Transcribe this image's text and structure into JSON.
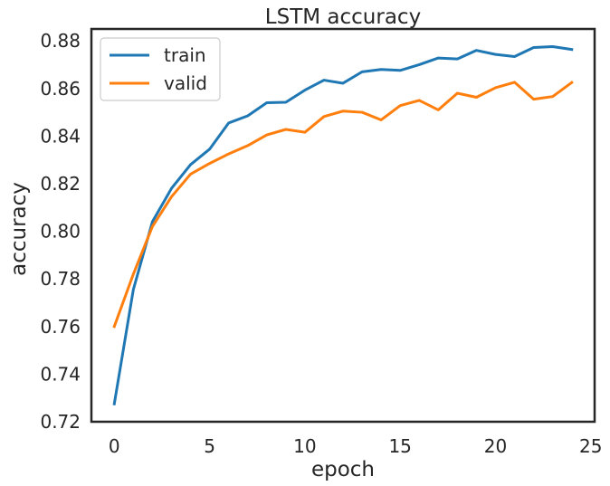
{
  "chart_data": {
    "type": "line",
    "title": "LSTM accuracy",
    "xlabel": "epoch",
    "ylabel": "accuracy",
    "xlim": [
      -1.2,
      25.2
    ],
    "ylim": [
      0.72,
      0.885
    ],
    "xticks": [
      0,
      5,
      10,
      15,
      20,
      25
    ],
    "yticks": [
      0.72,
      0.74,
      0.76,
      0.78,
      0.8,
      0.82,
      0.84,
      0.86,
      0.88
    ],
    "ytick_labels": [
      "0.72",
      "0.74",
      "0.76",
      "0.78",
      "0.80",
      "0.82",
      "0.84",
      "0.86",
      "0.88"
    ],
    "grid": false,
    "legend": "top-left",
    "x": [
      0,
      1,
      2,
      3,
      4,
      5,
      6,
      7,
      8,
      9,
      10,
      11,
      12,
      13,
      14,
      15,
      16,
      17,
      18,
      19,
      20,
      21,
      22,
      23,
      24
    ],
    "series": [
      {
        "name": "train",
        "color": "#1f77b4",
        "values": [
          0.7275,
          0.7755,
          0.804,
          0.818,
          0.828,
          0.8345,
          0.8455,
          0.8485,
          0.854,
          0.8542,
          0.8593,
          0.8635,
          0.8622,
          0.867,
          0.868,
          0.8676,
          0.87,
          0.8728,
          0.8724,
          0.876,
          0.8743,
          0.8734,
          0.8772,
          0.8776,
          0.8764
        ]
      },
      {
        "name": "valid",
        "color": "#ff7f0e",
        "values": [
          0.76,
          0.782,
          0.802,
          0.8145,
          0.824,
          0.8285,
          0.8325,
          0.836,
          0.8405,
          0.8428,
          0.8416,
          0.8482,
          0.8505,
          0.85,
          0.8468,
          0.8528,
          0.855,
          0.851,
          0.858,
          0.8563,
          0.8603,
          0.8626,
          0.8555,
          0.8566,
          0.8625
        ]
      }
    ]
  }
}
